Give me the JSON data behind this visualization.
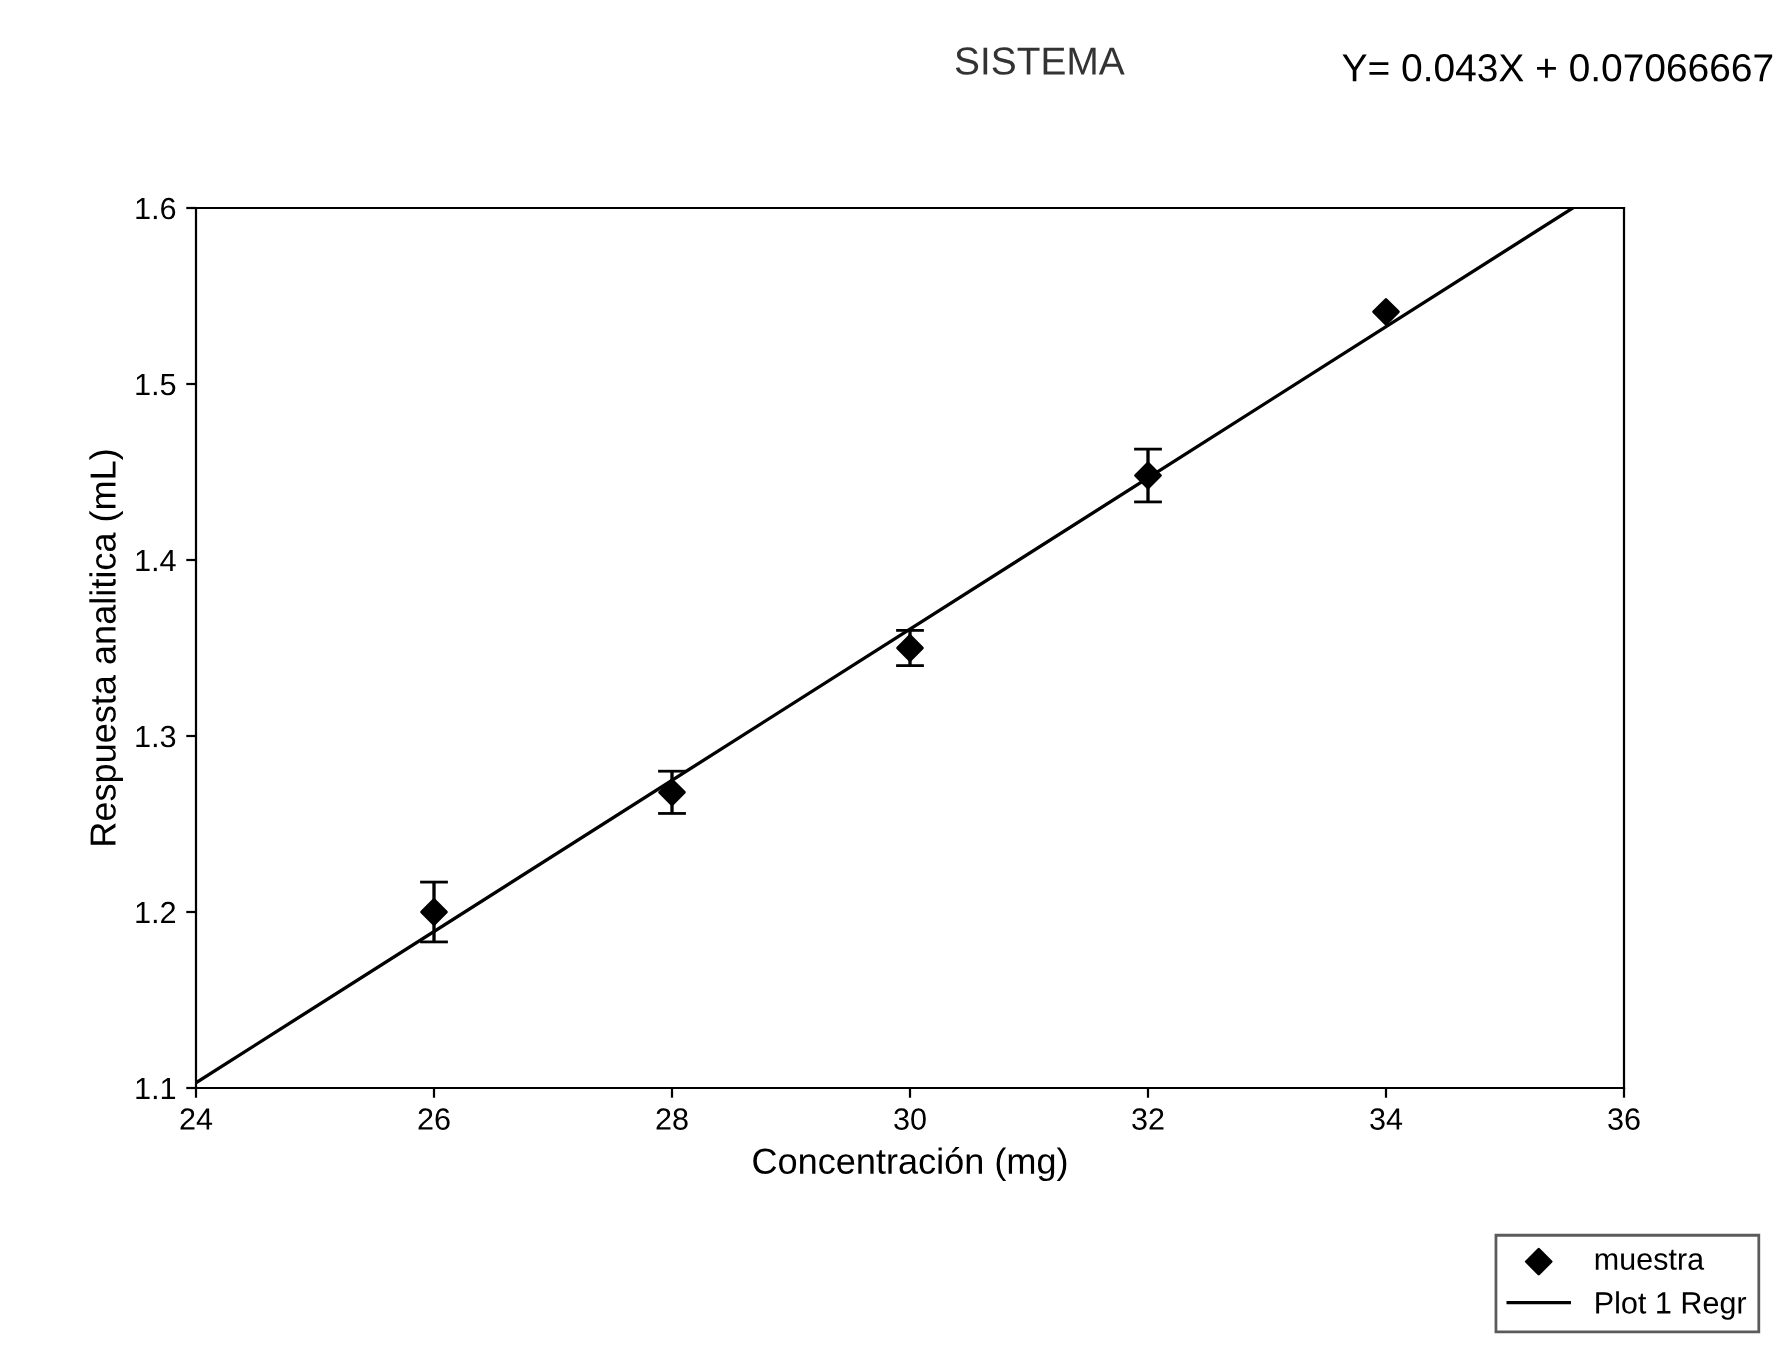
{
  "chart_data": {
    "type": "scatter",
    "title": "SISTEMA",
    "xlabel": "Concentración (mg)",
    "ylabel": "Respuesta analitica (mL)",
    "annotations": [
      "Y= 0.043X + 0.07066667"
    ],
    "xlim": [
      24,
      36
    ],
    "xticks": [
      24,
      26,
      28,
      30,
      32,
      34,
      36
    ],
    "ylim": [
      1.1,
      1.6
    ],
    "yticks": [
      1.1,
      1.2,
      1.3,
      1.4,
      1.5,
      1.6
    ],
    "grid": false,
    "legend": "bottom right",
    "series": [
      {
        "name": "muestra",
        "color": "#000000",
        "marker": "diamond",
        "x": [
          26,
          28,
          30,
          32,
          34
        ],
        "values": [
          1.2,
          1.268,
          1.35,
          1.448,
          1.541
        ],
        "errors": [
          0.017,
          0.012,
          0.01,
          0.015,
          null
        ]
      },
      {
        "name": "Plot 1 Regr",
        "type": "line",
        "color": "#000000",
        "x": [
          24,
          35.57
        ],
        "values": [
          1.103,
          1.6
        ]
      }
    ]
  }
}
